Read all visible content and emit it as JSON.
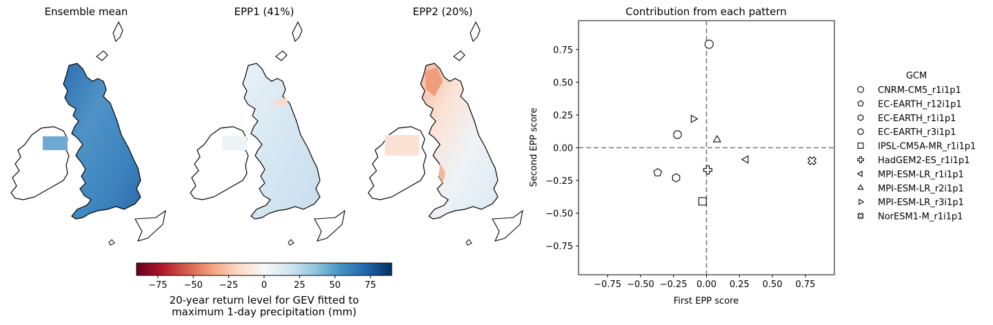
{
  "maps": {
    "titles": [
      "Ensemble mean",
      "EPP1 (41%)",
      "EPP2 (20%)"
    ]
  },
  "colorbar": {
    "ticks": [
      "−75",
      "−50",
      "−25",
      "0",
      "25",
      "50",
      "75"
    ],
    "tick_values": [
      -75,
      -50,
      -25,
      0,
      25,
      50,
      75
    ],
    "range": [
      -90,
      90
    ],
    "colormap": "RdBu",
    "label_line1": "20-year return level for GEV fitted to",
    "label_line2": "maximum 1-day precipitation (mm)"
  },
  "chart_data": {
    "type": "scatter",
    "title": "Contribution from each pattern",
    "xlabel": "First EPP score",
    "ylabel": "Second EPP score",
    "xlim": [
      -0.97,
      0.97
    ],
    "ylim": [
      -0.97,
      0.97
    ],
    "xticks": [
      -0.75,
      -0.5,
      -0.25,
      0.0,
      0.25,
      0.5,
      0.75
    ],
    "yticks": [
      -0.75,
      -0.5,
      -0.25,
      0.0,
      0.25,
      0.5,
      0.75
    ],
    "xtick_labels": [
      "−0.75",
      "−0.50",
      "−0.25",
      "0.00",
      "0.25",
      "0.50",
      "0.75"
    ],
    "ytick_labels": [
      "−0.75",
      "−0.50",
      "−0.25",
      "0.00",
      "0.25",
      "0.50",
      "0.75"
    ],
    "grid": false,
    "reference_lines": [
      {
        "axis": "x",
        "value": 0
      },
      {
        "axis": "y",
        "value": 0
      }
    ],
    "legend_title": "GCM",
    "legend_position": "right",
    "series": [
      {
        "name": "CNRM-CM5_r1i1p1",
        "marker": "circle",
        "x": 0.02,
        "y": 0.79
      },
      {
        "name": "EC-EARTH_r12i1p1",
        "marker": "pentagon",
        "x": -0.37,
        "y": -0.19
      },
      {
        "name": "EC-EARTH_r1i1p1",
        "marker": "hexagon",
        "x": -0.23,
        "y": -0.23
      },
      {
        "name": "EC-EARTH_r3i1p1",
        "marker": "octagon",
        "x": -0.22,
        "y": 0.1
      },
      {
        "name": "IPSL-CM5A-MR_r1i1p1",
        "marker": "square",
        "x": -0.03,
        "y": -0.41
      },
      {
        "name": "HadGEM2-ES_r1i1p1",
        "marker": "plus",
        "x": 0.01,
        "y": -0.17
      },
      {
        "name": "MPI-ESM-LR_r1i1p1",
        "marker": "triangle-left",
        "x": 0.3,
        "y": -0.09
      },
      {
        "name": "MPI-ESM-LR_r2i1p1",
        "marker": "triangle-up",
        "x": 0.08,
        "y": 0.06
      },
      {
        "name": "MPI-ESM-LR_r3i1p1",
        "marker": "triangle-right",
        "x": -0.1,
        "y": 0.22
      },
      {
        "name": "NorESM1-M_r1i1p1",
        "marker": "x-filled",
        "x": 0.8,
        "y": -0.1
      }
    ]
  }
}
